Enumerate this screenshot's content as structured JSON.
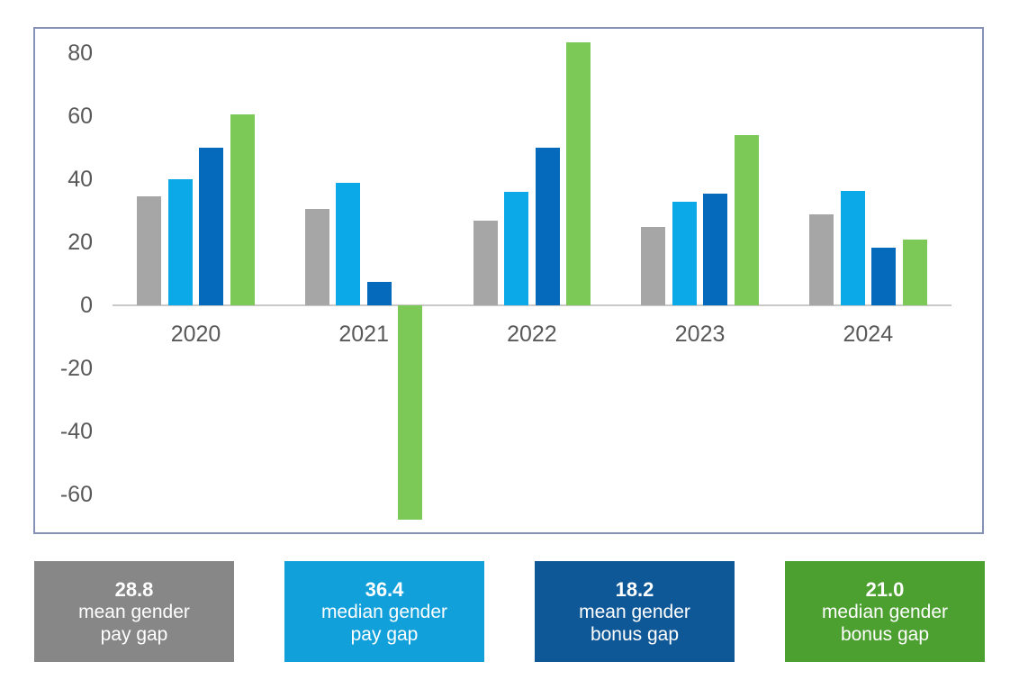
{
  "chart_data": {
    "type": "bar",
    "title": "",
    "xlabel": "",
    "ylabel": "",
    "categories": [
      "2020",
      "2021",
      "2022",
      "2023",
      "2024"
    ],
    "series": [
      {
        "name": "mean gender pay gap",
        "color": "#A6A6A6",
        "values": [
          34.5,
          30.5,
          27.0,
          25.0,
          28.8
        ]
      },
      {
        "name": "median gender pay gap",
        "color": "#0BA9E8",
        "values": [
          40.0,
          39.0,
          36.0,
          33.0,
          36.4
        ]
      },
      {
        "name": "mean gender bonus gap",
        "color": "#0569BC",
        "values": [
          50.0,
          7.5,
          50.0,
          35.5,
          18.2
        ]
      },
      {
        "name": "median gender bonus gap",
        "color": "#7CC957",
        "values": [
          60.5,
          -68.0,
          83.5,
          54.0,
          21.0
        ]
      }
    ],
    "yticks": [
      80,
      60,
      40,
      20,
      0,
      -20,
      -40,
      -60
    ],
    "ylim": [
      -72.5,
      88.5
    ],
    "grid": false,
    "legend_position": "bottom",
    "axis_text_color": "#595959",
    "axis_line_color": "#C9C9C9",
    "frame_border_color": "#8591B5"
  },
  "legend": {
    "cards": [
      {
        "value": "28.8",
        "line1": "mean gender",
        "line2": "pay gap",
        "color": "#878787"
      },
      {
        "value": "36.4",
        "line1": "median gender",
        "line2": "pay gap",
        "color": "#12A0DB"
      },
      {
        "value": "18.2",
        "line1": "mean gender",
        "line2": "bonus gap",
        "color": "#0F5898"
      },
      {
        "value": "21.0",
        "line1": "median gender",
        "line2": "bonus gap",
        "color": "#4BA02F"
      }
    ]
  }
}
